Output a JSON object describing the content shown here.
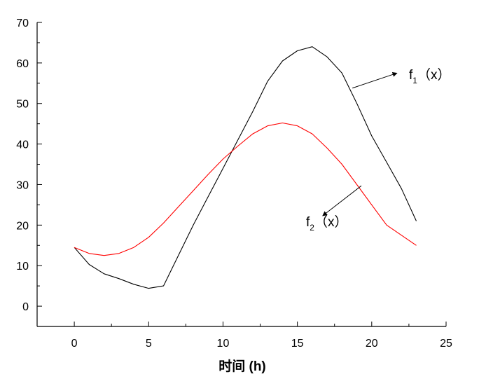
{
  "chart_data": {
    "type": "line",
    "xlabel": "时间 (h)",
    "ylabel": "",
    "xlim": [
      -2.5,
      25
    ],
    "ylim": [
      -5,
      70
    ],
    "x_ticks": [
      0,
      5,
      10,
      15,
      20,
      25
    ],
    "y_ticks": [
      0,
      10,
      20,
      30,
      40,
      50,
      60,
      70
    ],
    "grid": false,
    "series": [
      {
        "name": "f1（x）",
        "color": "#000000",
        "x": [
          0,
          1,
          2,
          3,
          4,
          5,
          6,
          7,
          8,
          9,
          10,
          11,
          12,
          13,
          14,
          15,
          16,
          17,
          18,
          19,
          20,
          21,
          22,
          23
        ],
        "y": [
          14.5,
          10.3,
          8.0,
          6.8,
          5.4,
          4.4,
          5.0,
          12.5,
          20.0,
          27.0,
          34.0,
          41.0,
          48.0,
          55.5,
          60.5,
          63.0,
          64.0,
          61.5,
          57.5,
          50.0,
          42.0,
          35.5,
          29.0,
          21.0
        ]
      },
      {
        "name": "f2（x）",
        "color": "#ff0000",
        "x": [
          0,
          1,
          2,
          3,
          4,
          5,
          6,
          7,
          8,
          9,
          10,
          11,
          12,
          13,
          14,
          15,
          16,
          17,
          18,
          19,
          20,
          21,
          22,
          23
        ],
        "y": [
          14.5,
          13.0,
          12.5,
          13.0,
          14.5,
          17.0,
          20.5,
          24.5,
          28.5,
          32.5,
          36.3,
          39.5,
          42.5,
          44.5,
          45.2,
          44.5,
          42.5,
          39.0,
          35.0,
          30.0,
          25.0,
          20.0,
          17.5,
          15.0
        ]
      }
    ],
    "annotations": [
      {
        "series": 0,
        "label": "f",
        "sub": "1",
        "suffix": "（x）",
        "arrow_from": [
          18.7,
          53.8
        ],
        "arrow_to": [
          21.7,
          57.5
        ]
      },
      {
        "series": 1,
        "label": "f",
        "sub": "2",
        "suffix": "（x）",
        "arrow_from": [
          19.3,
          29.7
        ],
        "arrow_to": [
          16.7,
          22.3
        ]
      }
    ]
  }
}
